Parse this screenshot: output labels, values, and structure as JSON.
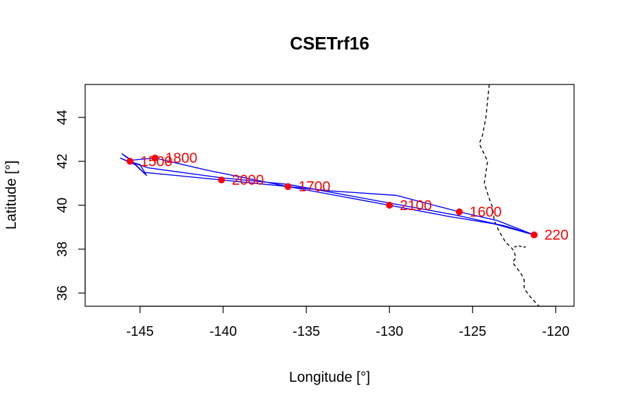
{
  "chart_data": {
    "type": "line",
    "title": "CSETrf16",
    "xlabel": "Longitude [°]",
    "ylabel": "Latitude [°]",
    "xlim": [
      -148.3,
      -118.9
    ],
    "ylim": [
      35.4,
      45.5
    ],
    "xticks": [
      -145,
      -140,
      -135,
      -130,
      -125,
      -120
    ],
    "yticks": [
      36,
      38,
      40,
      42,
      44
    ],
    "grid": false,
    "colors": {
      "track": "#0000ff",
      "points": "#ff0000",
      "coast": "#000000"
    },
    "track": [
      {
        "x": -121.3,
        "y": 38.65
      },
      {
        "x": -123.5,
        "y": 39.3
      },
      {
        "x": -125.8,
        "y": 39.7
      },
      {
        "x": -129.6,
        "y": 40.45
      },
      {
        "x": -133.5,
        "y": 40.65
      },
      {
        "x": -136.1,
        "y": 40.85
      },
      {
        "x": -140.1,
        "y": 41.15
      },
      {
        "x": -144.8,
        "y": 41.5
      },
      {
        "x": -145.4,
        "y": 41.95
      },
      {
        "x": -146.1,
        "y": 42.35
      },
      {
        "x": -145.5,
        "y": 42.05
      },
      {
        "x": -144.1,
        "y": 42.15
      },
      {
        "x": -141.0,
        "y": 41.6
      },
      {
        "x": -136.1,
        "y": 40.85
      },
      {
        "x": -130.0,
        "y": 40.0
      },
      {
        "x": -126.5,
        "y": 39.5
      },
      {
        "x": -123.7,
        "y": 39.15
      },
      {
        "x": -121.3,
        "y": 38.65
      },
      {
        "x": -123.0,
        "y": 39.05
      },
      {
        "x": -126.0,
        "y": 39.55
      },
      {
        "x": -130.0,
        "y": 40.1
      },
      {
        "x": -136.1,
        "y": 40.95
      },
      {
        "x": -140.1,
        "y": 41.25
      },
      {
        "x": -144.5,
        "y": 41.7
      },
      {
        "x": -145.7,
        "y": 42.0
      },
      {
        "x": -146.2,
        "y": 42.15
      },
      {
        "x": -145.3,
        "y": 41.85
      },
      {
        "x": -144.6,
        "y": 41.35
      },
      {
        "x": -145.0,
        "y": 41.85
      },
      {
        "x": -145.9,
        "y": 42.05
      }
    ],
    "points": [
      {
        "label": "1500",
        "x": -145.6,
        "y": 42.0
      },
      {
        "label": "1800",
        "x": -144.1,
        "y": 42.15
      },
      {
        "label": "2000",
        "x": -140.1,
        "y": 41.15
      },
      {
        "label": "1700",
        "x": -136.1,
        "y": 40.85
      },
      {
        "label": "2100",
        "x": -130.0,
        "y": 40.0
      },
      {
        "label": "1600",
        "x": -125.8,
        "y": 39.7
      },
      {
        "label": "220",
        "x": -121.3,
        "y": 38.65
      }
    ],
    "coastline": [
      {
        "x": -124.0,
        "y": 45.5
      },
      {
        "x": -124.2,
        "y": 44.0
      },
      {
        "x": -124.4,
        "y": 43.2
      },
      {
        "x": -124.6,
        "y": 42.8
      },
      {
        "x": -124.1,
        "y": 42.0
      },
      {
        "x": -124.3,
        "y": 41.0
      },
      {
        "x": -124.0,
        "y": 40.3
      },
      {
        "x": -123.8,
        "y": 39.9
      },
      {
        "x": -123.7,
        "y": 39.3
      },
      {
        "x": -123.4,
        "y": 38.8
      },
      {
        "x": -123.0,
        "y": 38.3
      },
      {
        "x": -122.7,
        "y": 38.1
      },
      {
        "x": -122.5,
        "y": 37.9
      },
      {
        "x": -122.4,
        "y": 37.6
      },
      {
        "x": -122.6,
        "y": 37.4
      },
      {
        "x": -122.4,
        "y": 37.2
      },
      {
        "x": -122.1,
        "y": 36.9
      },
      {
        "x": -121.9,
        "y": 36.6
      },
      {
        "x": -121.9,
        "y": 36.2
      },
      {
        "x": -121.5,
        "y": 35.8
      },
      {
        "x": -121.0,
        "y": 35.4
      }
    ],
    "bay": [
      {
        "x": -122.5,
        "y": 38.1
      },
      {
        "x": -122.2,
        "y": 38.15
      },
      {
        "x": -122.0,
        "y": 38.1
      },
      {
        "x": -121.8,
        "y": 38.1
      }
    ]
  }
}
